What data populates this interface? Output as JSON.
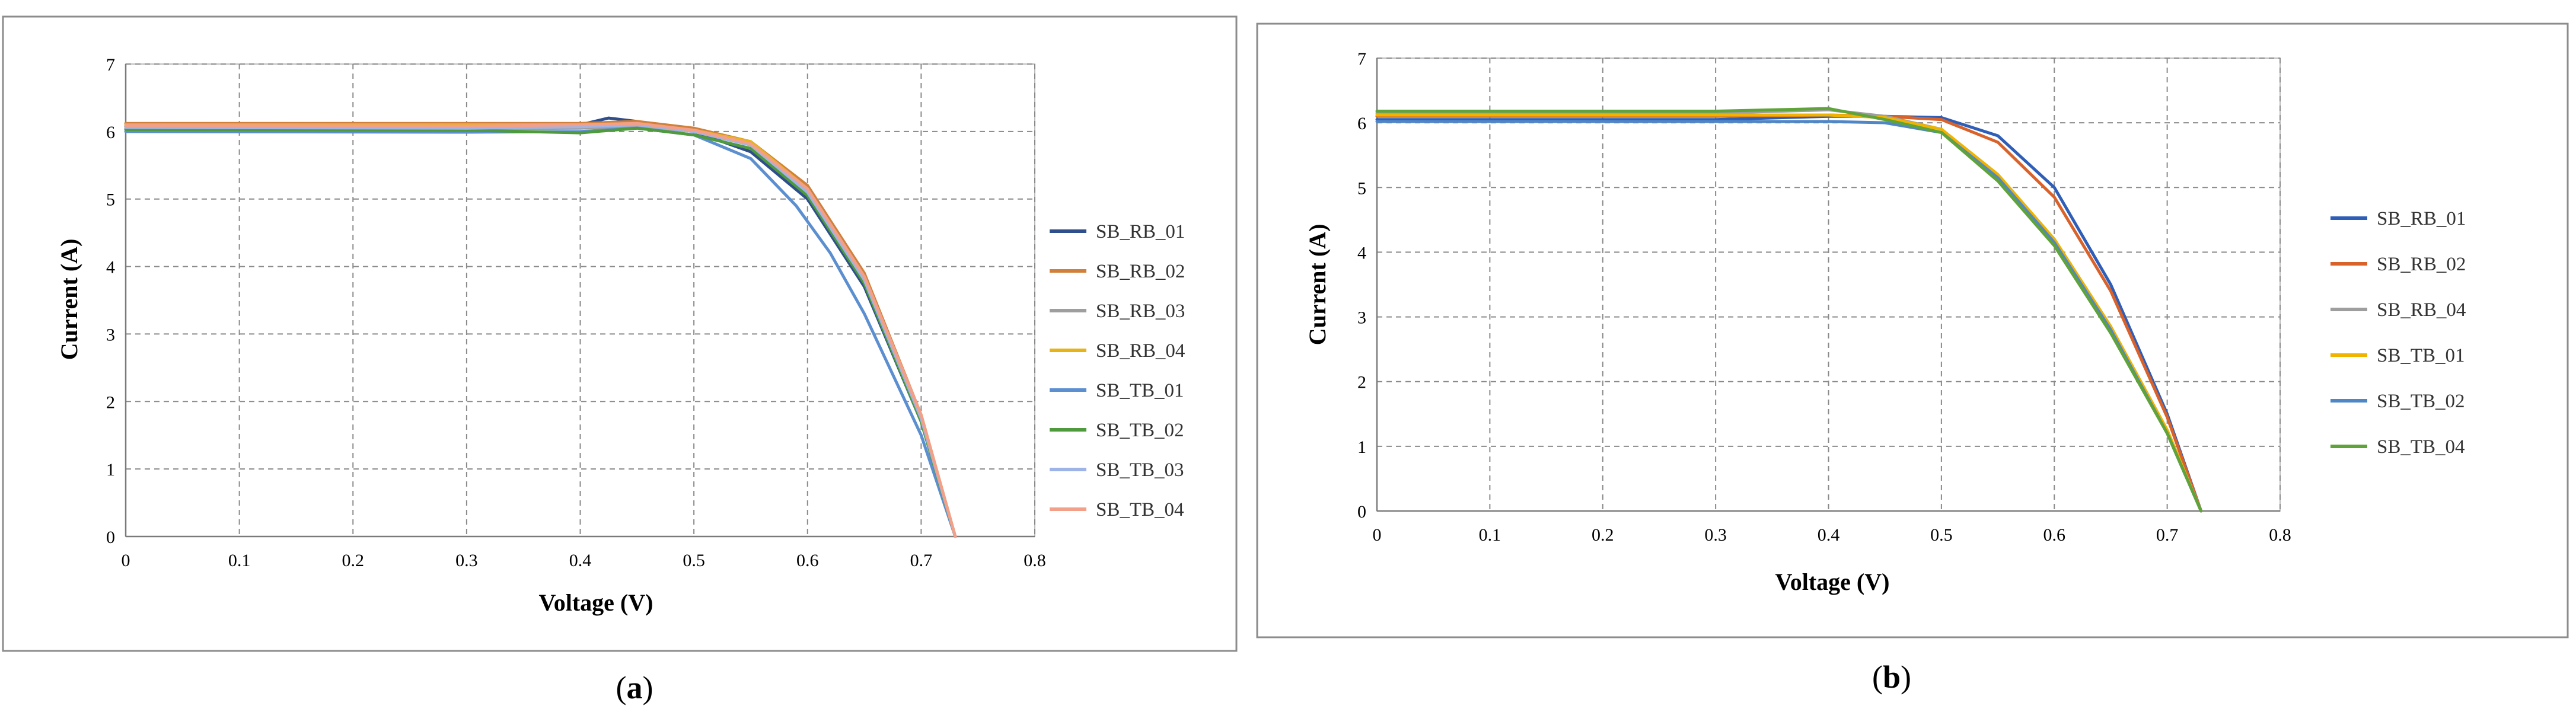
{
  "chart_data": [
    {
      "type": "line",
      "panel_label": "a",
      "xlabel": "Voltage (V)",
      "ylabel": "Current (A)",
      "xlim": [
        0,
        0.8
      ],
      "ylim": [
        0,
        7
      ],
      "x_ticks": [
        "0",
        "0.1",
        "0.2",
        "0.3",
        "0.4",
        "0.5",
        "0.6",
        "0.7",
        "0.8"
      ],
      "y_ticks": [
        "0",
        "1",
        "2",
        "3",
        "4",
        "5",
        "6",
        "7"
      ],
      "grid": true,
      "legend_position": "right",
      "series": [
        {
          "name": "SB_RB_01",
          "color": "#2E4E8C",
          "x": [
            0,
            0.3,
            0.4,
            0.425,
            0.45,
            0.5,
            0.55,
            0.6,
            0.65,
            0.7,
            0.73
          ],
          "y": [
            6.08,
            6.07,
            6.1,
            6.2,
            6.15,
            6.0,
            5.7,
            5.0,
            3.7,
            1.7,
            0
          ]
        },
        {
          "name": "SB_RB_02",
          "color": "#D0803A",
          "x": [
            0,
            0.3,
            0.4,
            0.45,
            0.5,
            0.55,
            0.6,
            0.65,
            0.7,
            0.73
          ],
          "y": [
            6.12,
            6.12,
            6.12,
            6.15,
            6.05,
            5.85,
            5.2,
            3.9,
            1.8,
            0
          ]
        },
        {
          "name": "SB_RB_03",
          "color": "#9E9E9E",
          "x": [
            0,
            0.3,
            0.4,
            0.45,
            0.5,
            0.55,
            0.6,
            0.65,
            0.7,
            0.73
          ],
          "y": [
            6.05,
            6.04,
            6.05,
            6.08,
            6.0,
            5.8,
            5.1,
            3.8,
            1.75,
            0
          ]
        },
        {
          "name": "SB_RB_04",
          "color": "#E6B419",
          "x": [
            0,
            0.3,
            0.4,
            0.45,
            0.5,
            0.55,
            0.6,
            0.65,
            0.7,
            0.73
          ],
          "y": [
            6.1,
            6.1,
            6.1,
            6.12,
            6.02,
            5.85,
            5.15,
            3.85,
            1.8,
            0
          ]
        },
        {
          "name": "SB_TB_01",
          "color": "#5B8FD0",
          "x": [
            0,
            0.3,
            0.4,
            0.45,
            0.5,
            0.55,
            0.59,
            0.62,
            0.65,
            0.7,
            0.73
          ],
          "y": [
            6.0,
            5.99,
            6.0,
            6.05,
            5.95,
            5.6,
            4.9,
            4.2,
            3.3,
            1.5,
            0
          ]
        },
        {
          "name": "SB_TB_02",
          "color": "#4E9A3C",
          "x": [
            0,
            0.3,
            0.4,
            0.45,
            0.5,
            0.55,
            0.6,
            0.65,
            0.7,
            0.73
          ],
          "y": [
            6.03,
            6.02,
            5.98,
            6.05,
            5.95,
            5.75,
            5.05,
            3.75,
            1.7,
            0
          ]
        },
        {
          "name": "SB_TB_03",
          "color": "#9FB4E6",
          "x": [
            0,
            0.3,
            0.4,
            0.45,
            0.5,
            0.55,
            0.6,
            0.65,
            0.7,
            0.73
          ],
          "y": [
            6.06,
            6.05,
            6.07,
            6.1,
            6.0,
            5.8,
            5.1,
            3.8,
            1.75,
            0
          ]
        },
        {
          "name": "SB_TB_04",
          "color": "#F2A08A",
          "x": [
            0,
            0.3,
            0.4,
            0.45,
            0.5,
            0.55,
            0.6,
            0.65,
            0.7,
            0.73
          ],
          "y": [
            6.09,
            6.08,
            6.1,
            6.12,
            6.02,
            5.82,
            5.15,
            3.85,
            1.8,
            0
          ]
        }
      ]
    },
    {
      "type": "line",
      "panel_label": "b",
      "xlabel": "Voltage (V)",
      "ylabel": "Current (A)",
      "xlim": [
        0,
        0.8
      ],
      "ylim": [
        0,
        7
      ],
      "x_ticks": [
        "0",
        "0.1",
        "0.2",
        "0.3",
        "0.4",
        "0.5",
        "0.6",
        "0.7",
        "0.8"
      ],
      "y_ticks": [
        "0",
        "1",
        "2",
        "3",
        "4",
        "5",
        "6",
        "7"
      ],
      "grid": true,
      "legend_position": "right",
      "series": [
        {
          "name": "SB_RB_01",
          "color": "#2E5EB8",
          "x": [
            0,
            0.3,
            0.4,
            0.45,
            0.5,
            0.55,
            0.6,
            0.65,
            0.7,
            0.73
          ],
          "y": [
            6.05,
            6.05,
            6.1,
            6.1,
            6.08,
            5.8,
            5.0,
            3.5,
            1.5,
            0
          ]
        },
        {
          "name": "SB_RB_02",
          "color": "#D9622B",
          "x": [
            0,
            0.3,
            0.4,
            0.45,
            0.5,
            0.55,
            0.6,
            0.65,
            0.7,
            0.73
          ],
          "y": [
            6.1,
            6.1,
            6.12,
            6.1,
            6.05,
            5.7,
            4.85,
            3.4,
            1.45,
            0
          ]
        },
        {
          "name": "SB_RB_04",
          "color": "#9E9E9E",
          "x": [
            0,
            0.3,
            0.4,
            0.45,
            0.5,
            0.55,
            0.6,
            0.65,
            0.7,
            0.73
          ],
          "y": [
            6.15,
            6.15,
            6.2,
            6.1,
            5.9,
            5.2,
            4.2,
            2.85,
            1.25,
            0
          ]
        },
        {
          "name": "SB_TB_01",
          "color": "#F0B400",
          "x": [
            0,
            0.3,
            0.4,
            0.45,
            0.5,
            0.55,
            0.6,
            0.65,
            0.7,
            0.73
          ],
          "y": [
            6.12,
            6.12,
            6.12,
            6.08,
            5.9,
            5.2,
            4.2,
            2.85,
            1.25,
            0
          ]
        },
        {
          "name": "SB_TB_02",
          "color": "#4F86C6",
          "x": [
            0,
            0.3,
            0.4,
            0.45,
            0.5,
            0.55,
            0.6,
            0.65,
            0.7,
            0.73
          ],
          "y": [
            6.02,
            6.02,
            6.02,
            6.0,
            5.85,
            5.15,
            4.15,
            2.8,
            1.2,
            0
          ]
        },
        {
          "name": "SB_TB_04",
          "color": "#5FA33A",
          "x": [
            0,
            0.3,
            0.4,
            0.45,
            0.5,
            0.55,
            0.6,
            0.65,
            0.7,
            0.73
          ],
          "y": [
            6.18,
            6.18,
            6.22,
            6.05,
            5.85,
            5.1,
            4.1,
            2.75,
            1.2,
            0
          ]
        }
      ]
    }
  ]
}
